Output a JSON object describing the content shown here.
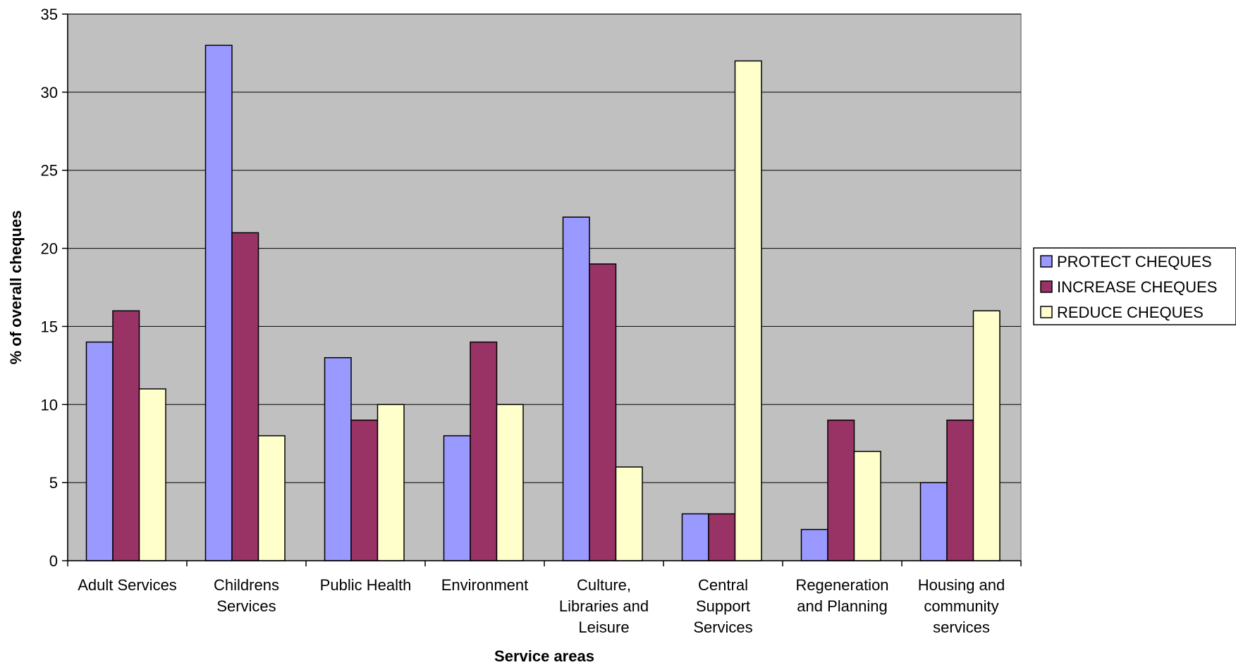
{
  "chart_data": {
    "type": "bar",
    "title": "",
    "xlabel": "Service areas",
    "ylabel": "% of overall cheques",
    "ylim": [
      0,
      35
    ],
    "yticks": [
      0,
      5,
      10,
      15,
      20,
      25,
      30,
      35
    ],
    "grid": true,
    "legend_position": "right",
    "plot_background": "#c0c0c0",
    "categories": [
      "Adult Services",
      "Childrens Services",
      "Public Health",
      "Environment",
      "Culture, Libraries and Leisure",
      "Central Support Services",
      "Regeneration and Planning",
      "Housing and community services"
    ],
    "category_lines": [
      [
        "Adult Services"
      ],
      [
        "Childrens",
        "Services"
      ],
      [
        "Public Health"
      ],
      [
        "Environment"
      ],
      [
        "Culture,",
        "Libraries and",
        "Leisure"
      ],
      [
        "Central",
        "Support",
        "Services"
      ],
      [
        "Regeneration",
        "and Planning"
      ],
      [
        "Housing and",
        "community",
        "services"
      ]
    ],
    "series": [
      {
        "name": "PROTECT CHEQUES",
        "color": "#9999ff",
        "values": [
          14,
          33,
          13,
          8,
          22,
          3,
          2,
          5
        ]
      },
      {
        "name": "INCREASE CHEQUES",
        "color": "#993366",
        "values": [
          16,
          21,
          9,
          14,
          19,
          3,
          9,
          9
        ]
      },
      {
        "name": "REDUCE CHEQUES",
        "color": "#ffffcc",
        "values": [
          11,
          8,
          10,
          10,
          6,
          32,
          7,
          16
        ]
      }
    ]
  }
}
